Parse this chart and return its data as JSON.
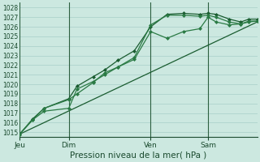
{
  "xlabel": "Pression niveau de la mer( hPa )",
  "ylim": [
    1014.5,
    1028.5
  ],
  "yticks": [
    1015,
    1016,
    1017,
    1018,
    1019,
    1020,
    1021,
    1022,
    1023,
    1024,
    1025,
    1026,
    1027,
    1028
  ],
  "bg_color": "#cce8e0",
  "grid_color": "#a8cfc8",
  "line_color_dark": "#1a5c30",
  "line_color_med": "#2a7a44",
  "vline_color": "#2d6040",
  "day_labels": [
    "Jeu",
    "Dim",
    "Ven",
    "Sam"
  ],
  "day_positions": [
    0.0,
    3.0,
    8.0,
    11.5
  ],
  "xlim": [
    0,
    14.5
  ],
  "series": [
    {
      "x": [
        0,
        0.8,
        1.5,
        3.0,
        3.5,
        4.5,
        5.2,
        6.0,
        7.0,
        8.0,
        9.0,
        10.0,
        11.0,
        11.5,
        12.0,
        12.8,
        13.5,
        14.0,
        14.5
      ],
      "y": [
        1014.8,
        1016.3,
        1017.2,
        1017.5,
        1019.5,
        1020.3,
        1021.0,
        1021.8,
        1022.8,
        1026.2,
        1027.2,
        1027.2,
        1027.1,
        1027.2,
        1027.0,
        1026.5,
        1026.3,
        1026.6,
        1026.6
      ],
      "lw": 0.9,
      "color": "#2a7a44",
      "zorder": 4
    },
    {
      "x": [
        0,
        0.8,
        1.5,
        3.0,
        3.5,
        4.5,
        5.2,
        6.0,
        7.0,
        8.0,
        9.0,
        10.0,
        11.0,
        11.5,
        12.0,
        12.8,
        13.5,
        14.0,
        14.5
      ],
      "y": [
        1014.8,
        1016.4,
        1017.5,
        1018.5,
        1019.8,
        1020.8,
        1021.5,
        1022.5,
        1023.5,
        1026.0,
        1027.3,
        1027.4,
        1027.3,
        1027.4,
        1027.3,
        1026.8,
        1026.5,
        1026.8,
        1026.8
      ],
      "lw": 0.9,
      "color": "#1a5c30",
      "zorder": 3
    },
    {
      "x": [
        0,
        0.8,
        1.5,
        3.0,
        3.5,
        4.5,
        5.2,
        6.0,
        7.0,
        8.0,
        9.0,
        10.0,
        11.0,
        11.5,
        12.0,
        12.8,
        13.5,
        14.0,
        14.5
      ],
      "y": [
        1014.8,
        1016.3,
        1017.5,
        1018.4,
        1019.0,
        1020.2,
        1021.2,
        1021.8,
        1022.6,
        1025.5,
        1024.8,
        1025.5,
        1025.8,
        1027.0,
        1026.5,
        1026.2,
        1026.3,
        1026.5,
        1026.6
      ],
      "lw": 0.9,
      "color": "#2a7a44",
      "zorder": 3
    },
    {
      "x": [
        0,
        14.5
      ],
      "y": [
        1014.8,
        1026.5
      ],
      "lw": 0.9,
      "color": "#1a5c30",
      "zorder": 2
    }
  ],
  "vlines": [
    0.0,
    3.0,
    8.0,
    11.5
  ],
  "marker": "D",
  "markersize": 2.0,
  "ytick_fontsize": 5.5,
  "xtick_fontsize": 6.5,
  "xlabel_fontsize": 7.5
}
